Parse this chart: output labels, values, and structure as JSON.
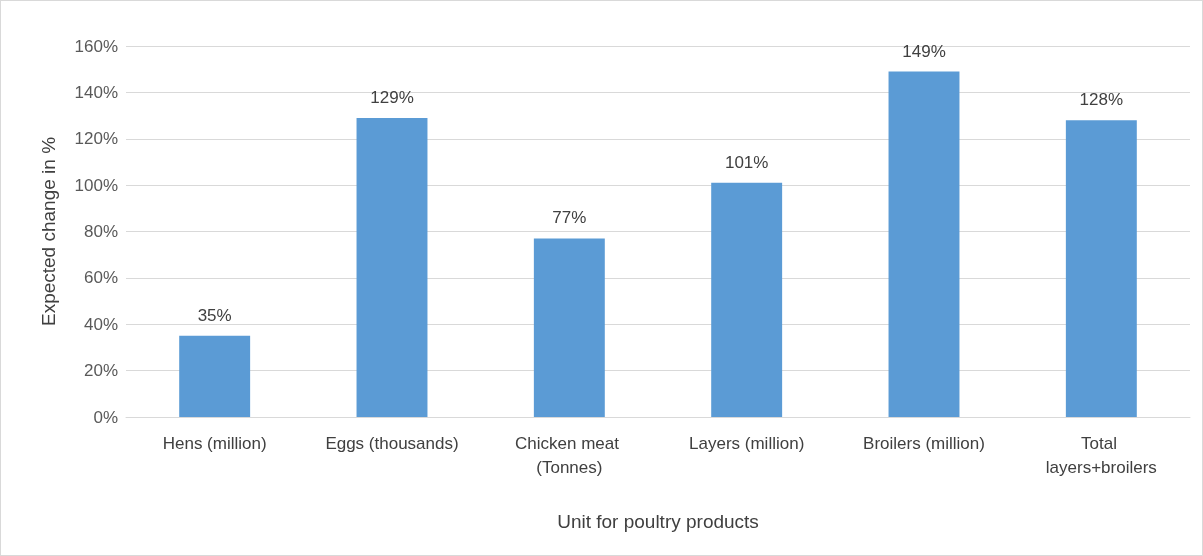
{
  "chart_data": {
    "type": "bar",
    "xlabel": "Unit for poultry products",
    "ylabel": "Expected change in %",
    "categories": [
      "Hens (million)",
      "Eggs (thousands)",
      "Chicken meat (Tonnes)",
      "Layers (million)",
      "Broilers (million)",
      "Total layers+broilers"
    ],
    "values": [
      35,
      129,
      77,
      101,
      149,
      128
    ],
    "value_labels": [
      "35%",
      "129%",
      "77%",
      "101%",
      "149%",
      "128%"
    ],
    "color": "#5b9bd5",
    "ylim": [
      0,
      160
    ],
    "yticks": [
      {
        "value": 0,
        "label": "0%"
      },
      {
        "value": 20,
        "label": "20%"
      },
      {
        "value": 40,
        "label": "40%"
      },
      {
        "value": 60,
        "label": "60%"
      },
      {
        "value": 80,
        "label": "80%"
      },
      {
        "value": 100,
        "label": "100%"
      },
      {
        "value": 120,
        "label": "120%"
      },
      {
        "value": 140,
        "label": "140%"
      },
      {
        "value": 160,
        "label": "160%"
      }
    ],
    "grid": "y"
  }
}
